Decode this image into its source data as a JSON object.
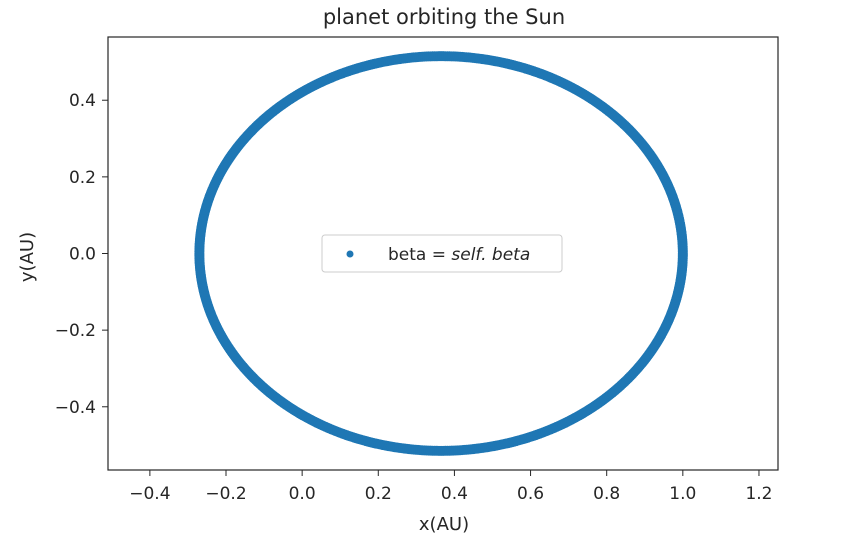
{
  "chart_data": {
    "type": "scatter",
    "title": "planet orbiting the Sun",
    "xlabel": "x(AU)",
    "ylabel": "y(AU)",
    "xlim": [
      -0.51,
      1.25
    ],
    "ylim": [
      -0.565,
      0.565
    ],
    "xticks": [
      -0.4,
      -0.2,
      0.0,
      0.2,
      0.4,
      0.6,
      0.8,
      1.0,
      1.2
    ],
    "xtick_labels": [
      "−0.4",
      "−0.2",
      "0.0",
      "0.2",
      "0.4",
      "0.6",
      "0.8",
      "1.0",
      "1.2"
    ],
    "yticks": [
      -0.4,
      -0.2,
      0.0,
      0.2,
      0.4
    ],
    "ytick_labels": [
      "−0.4",
      "−0.2",
      "0.0",
      "0.2",
      "0.4"
    ],
    "grid": false,
    "legend": {
      "position": "center",
      "entries": [
        {
          "label_plain": "beta = ",
          "label_italic": "self. beta"
        }
      ]
    },
    "series": [
      {
        "color": "#1f77b4",
        "center": [
          0.365,
          0.0
        ],
        "semi_axis_x": 0.635,
        "semi_axis_y": 0.515,
        "points": []
      }
    ]
  }
}
